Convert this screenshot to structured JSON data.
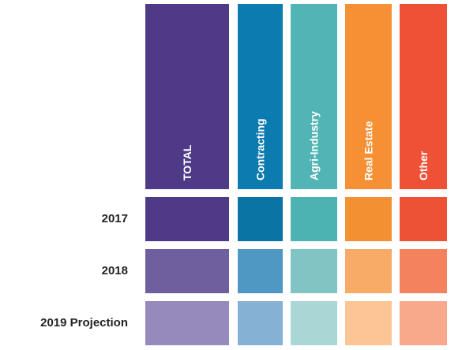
{
  "table": {
    "columns": [
      {
        "label": "TOTAL",
        "color": "#4e3a87",
        "cells": [
          "#4e3a87",
          "#6f5f9e",
          "#9689bb"
        ]
      },
      {
        "label": "Contracting",
        "color": "#0b7bb0",
        "cells": [
          "#0a74a5",
          "#4f98c4",
          "#85b1d4"
        ]
      },
      {
        "label": "Agri-Industry",
        "color": "#52b5b5",
        "cells": [
          "#4db2b2",
          "#82c4c4",
          "#abd6d6"
        ]
      },
      {
        "label": "Real Estate",
        "color": "#f59035",
        "cells": [
          "#f39132",
          "#f8ab67",
          "#fcc595"
        ]
      },
      {
        "label": "Other",
        "color": "#ef5136",
        "cells": [
          "#ee5236",
          "#f5825f",
          "#f8a98b"
        ]
      }
    ],
    "rows": [
      "2017",
      "2018",
      "2019 Projection"
    ]
  }
}
